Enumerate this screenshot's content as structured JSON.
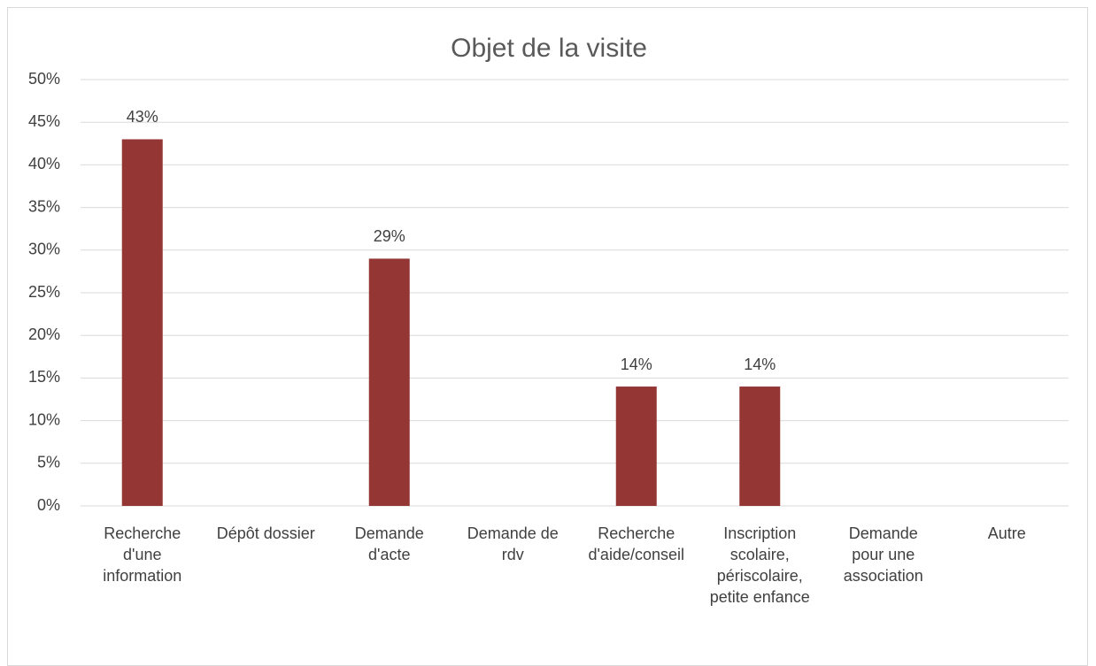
{
  "chart_data": {
    "type": "bar",
    "title": "Objet de la visite",
    "categories": [
      "Recherche d'une information",
      "Dépôt dossier",
      "Demande d'acte",
      "Demande de rdv",
      "Recherche d'aide/conseil",
      "Inscription scolaire, périscolaire, petite enfance",
      "Demande pour une association",
      "Autre"
    ],
    "values": [
      43,
      null,
      29,
      null,
      14,
      14,
      null,
      null
    ],
    "value_labels": [
      "43%",
      null,
      "29%",
      null,
      "14%",
      "14%",
      null,
      null
    ],
    "color": "#943634",
    "ylim": [
      0,
      50
    ],
    "yticks": [
      {
        "value": 0,
        "label": "0%"
      },
      {
        "value": 5,
        "label": "5%"
      },
      {
        "value": 10,
        "label": "10%"
      },
      {
        "value": 15,
        "label": "15%"
      },
      {
        "value": 20,
        "label": "20%"
      },
      {
        "value": 25,
        "label": "25%"
      },
      {
        "value": 30,
        "label": "30%"
      },
      {
        "value": 35,
        "label": "35%"
      },
      {
        "value": 40,
        "label": "40%"
      },
      {
        "value": 45,
        "label": "45%"
      },
      {
        "value": 50,
        "label": "50%"
      }
    ],
    "grid": true
  }
}
